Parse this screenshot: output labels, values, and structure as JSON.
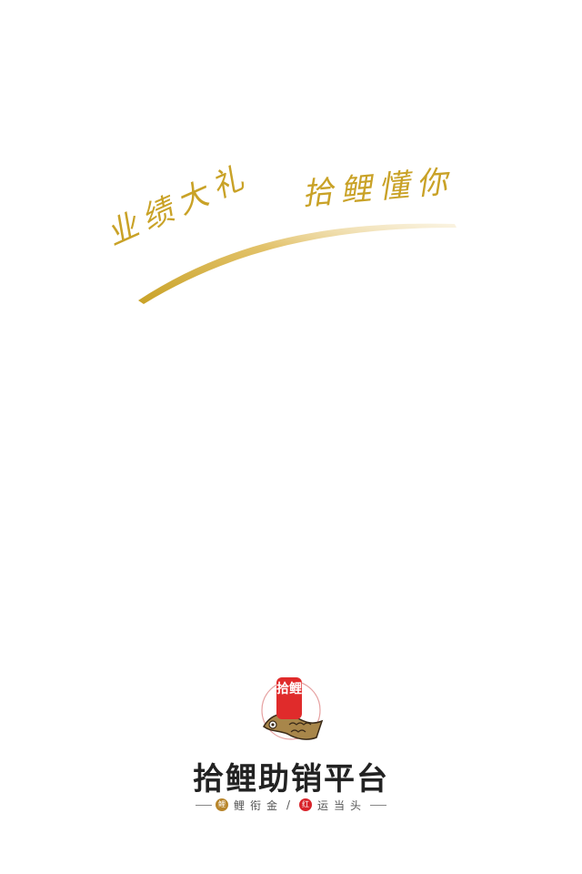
{
  "slogan": {
    "part1": "业绩大礼",
    "part2": "拾鲤懂你",
    "accent_color": "#c9a227"
  },
  "logo": {
    "seal_text": "拾鲤",
    "icon": "koi-fish-icon",
    "brand_name": "拾鲤助销平台"
  },
  "tagline": {
    "left_badge": "鲤",
    "left_text": "鲤衔金",
    "separator": "/",
    "right_badge": "红",
    "right_text": "运当头",
    "left_badge_color": "#b8862c",
    "right_badge_color": "#d8232a"
  }
}
